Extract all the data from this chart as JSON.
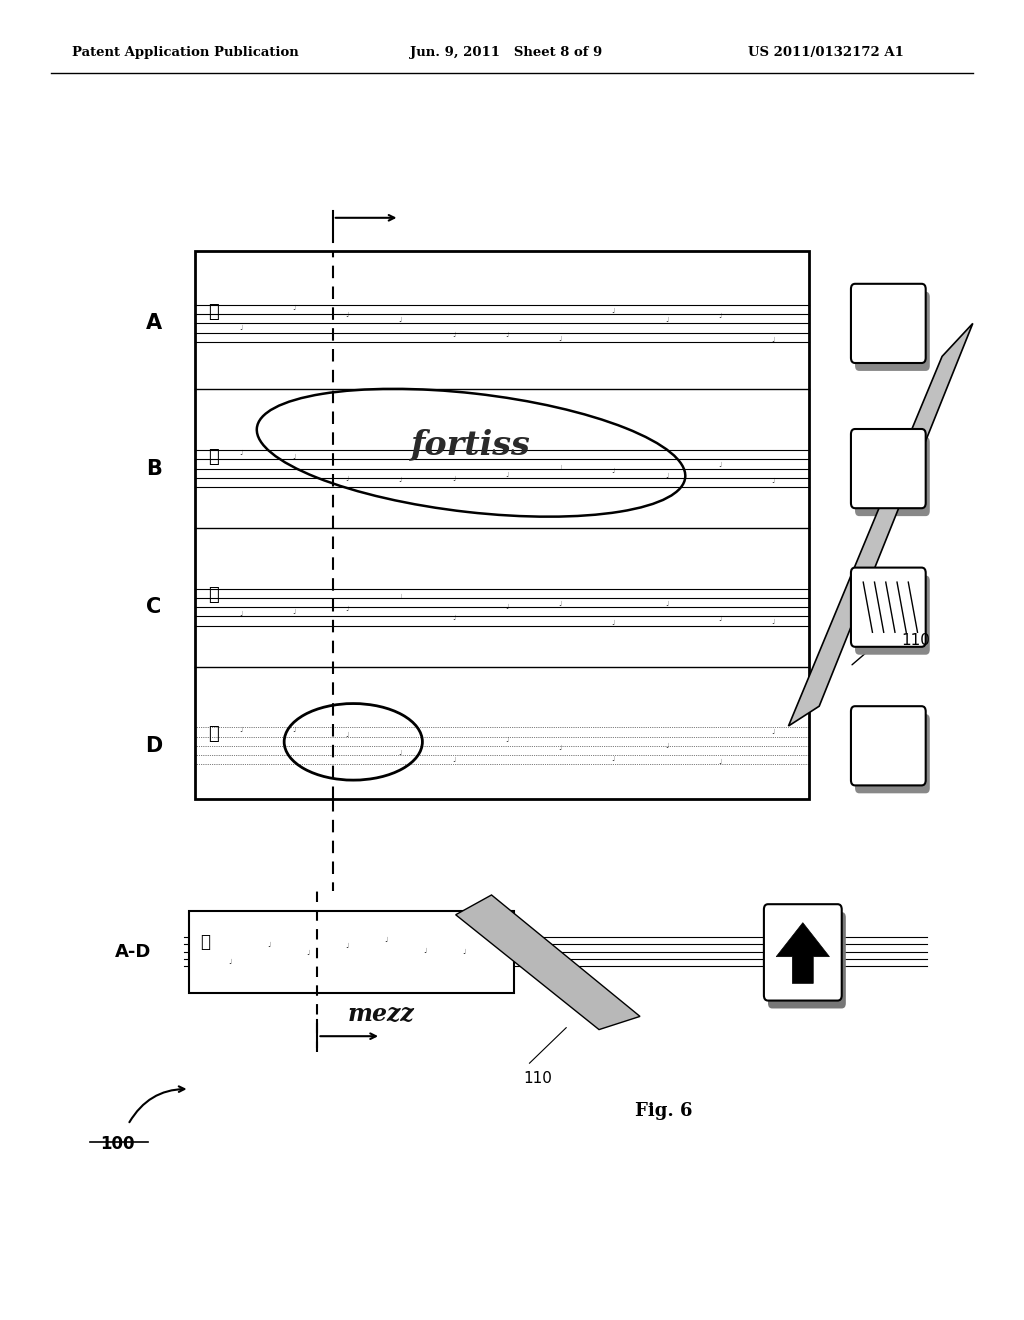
{
  "bg_color": "#ffffff",
  "header_left": "Patent Application Publication",
  "header_mid": "Jun. 9, 2011   Sheet 8 of 9",
  "header_right": "US 2011/0132172 A1",
  "fig_label": "Fig. 6",
  "label_100": "100",
  "label_110_top": "110",
  "label_110_bot": "110",
  "row_labels": [
    "A",
    "B",
    "C",
    "D"
  ],
  "combined_label": "A-D"
}
